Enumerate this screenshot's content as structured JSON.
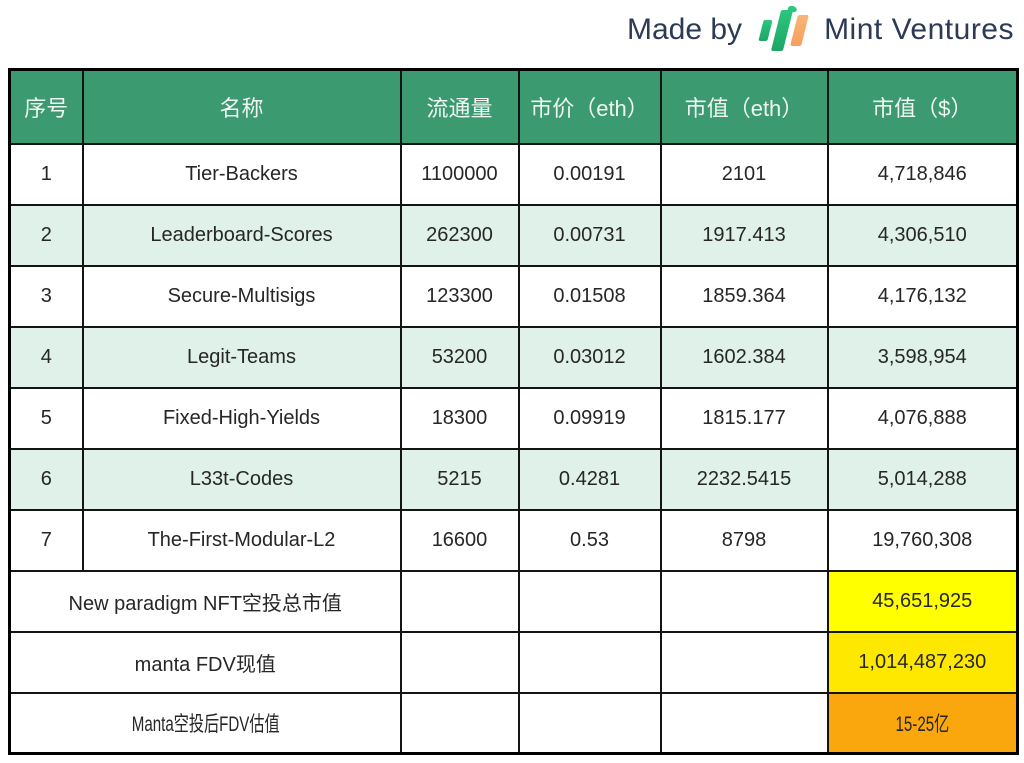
{
  "branding": {
    "made_by": "Made by",
    "brand": "Mint Ventures"
  },
  "colors": {
    "header_green": "#3B9A6F",
    "mint_row": "#DFF1E9",
    "header_text": "#F0F6F2",
    "body_text": "#262626",
    "brand_navy": "#2C3A55",
    "logo_green": "#2BC77E",
    "logo_orange": "#F5A05C",
    "border": "#141414",
    "highlight_yellow": "#FFFF00",
    "highlight_gold": "#FFE800",
    "highlight_orange": "#FAA70D"
  },
  "table": {
    "headers": [
      "序号",
      "名称",
      "流通量",
      "市价（eth）",
      "市值（eth）",
      "市值（$）"
    ],
    "rows": [
      {
        "no": "1",
        "name": "Tier-Backers",
        "supply": "1100000",
        "price": "0.00191",
        "cap_eth": "2101",
        "cap_usd": "4,718,846"
      },
      {
        "no": "2",
        "name": "Leaderboard-Scores",
        "supply": "262300",
        "price": "0.00731",
        "cap_eth": "1917.413",
        "cap_usd": "4,306,510"
      },
      {
        "no": "3",
        "name": "Secure-Multisigs",
        "supply": "123300",
        "price": "0.01508",
        "cap_eth": "1859.364",
        "cap_usd": "4,176,132"
      },
      {
        "no": "4",
        "name": "Legit-Teams",
        "supply": "53200",
        "price": "0.03012",
        "cap_eth": "1602.384",
        "cap_usd": "3,598,954"
      },
      {
        "no": "5",
        "name": "Fixed-High-Yields",
        "supply": "18300",
        "price": "0.09919",
        "cap_eth": "1815.177",
        "cap_usd": "4,076,888"
      },
      {
        "no": "6",
        "name": "L33t-Codes",
        "supply": "5215",
        "price": "0.4281",
        "cap_eth": "2232.5415",
        "cap_usd": "5,014,288"
      },
      {
        "no": "7",
        "name": "The-First-Modular-L2",
        "supply": "16600",
        "price": "0.53",
        "cap_eth": "8798",
        "cap_usd": "19,760,308"
      }
    ],
    "summary": [
      {
        "label": "New paradigm NFT空投总市值",
        "value": "45,651,925",
        "highlight": "#FFFF00"
      },
      {
        "label": "manta FDV现值",
        "value": "1,014,487,230",
        "highlight": "#FFE800"
      },
      {
        "label": "Manta空投后FDV估值",
        "value": "15-25亿",
        "highlight": "#FAA70D"
      }
    ]
  }
}
